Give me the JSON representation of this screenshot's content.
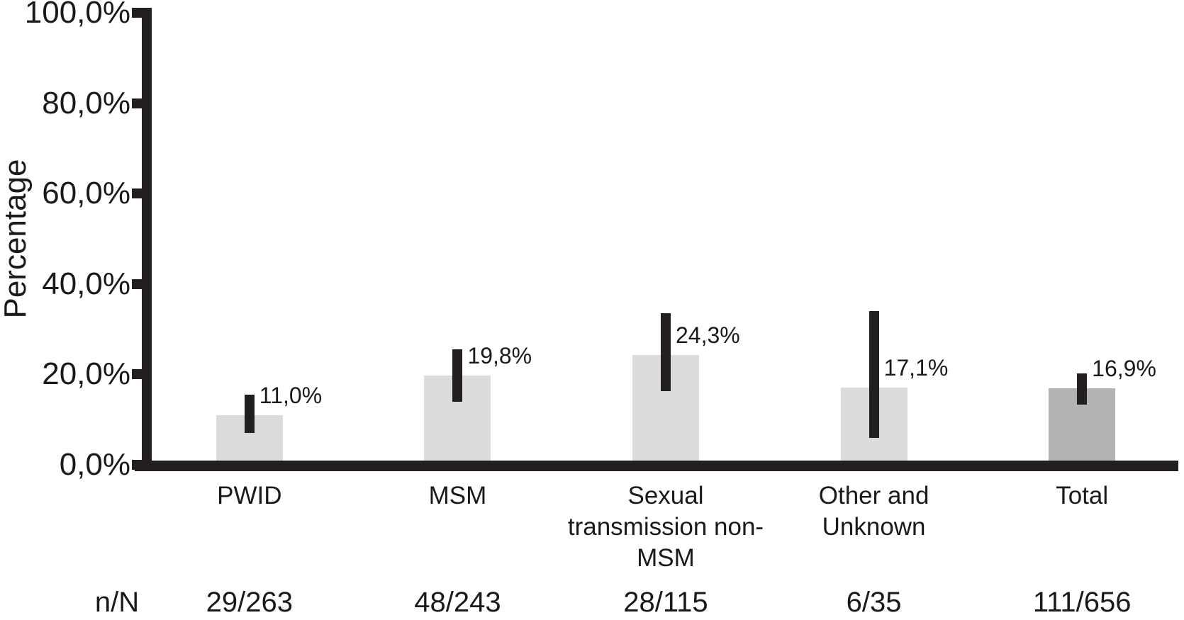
{
  "colors": {
    "background": "#ffffff",
    "text": "#1a1a1a",
    "axis": "#231f20",
    "bar_light": "#dcdcde",
    "bar_dark": "#b3b3b6"
  },
  "chart_data": {
    "type": "bar",
    "title": "",
    "xlabel": "",
    "ylabel": "Percentage",
    "row_header": "n/N",
    "ylim": [
      0,
      100
    ],
    "grid": false,
    "legend": false,
    "decimal_separator": ",",
    "yticks": [
      {
        "label": "100,0%",
        "value": 100
      },
      {
        "label": "80,0%",
        "value": 80
      },
      {
        "label": "60,0%",
        "value": 60
      },
      {
        "label": "40,0%",
        "value": 40
      },
      {
        "label": "20,0%",
        "value": 20
      },
      {
        "label": "0,0%",
        "value": 0
      }
    ],
    "bars": [
      {
        "category": "PWID",
        "value": 11.0,
        "value_label": "11,0%",
        "ci_low": 7.0,
        "ci_high": 15.5,
        "n_over_N": "29/263",
        "color_key": "bar_light"
      },
      {
        "category": "MSM",
        "value": 19.8,
        "value_label": "19,8%",
        "ci_low": 14.0,
        "ci_high": 25.5,
        "n_over_N": "48/243",
        "color_key": "bar_light"
      },
      {
        "category": "Sexual\ntransmission non-\nMSM",
        "value": 24.3,
        "value_label": "24,3%",
        "ci_low": 16.3,
        "ci_high": 33.5,
        "n_over_N": "28/115",
        "color_key": "bar_light"
      },
      {
        "category": "Other and\nUnknown",
        "value": 17.1,
        "value_label": "17,1%",
        "ci_low": 5.9,
        "ci_high": 34.0,
        "n_over_N": "6/35",
        "color_key": "bar_light"
      },
      {
        "category": "Total",
        "value": 16.9,
        "value_label": "16,9%",
        "ci_low": 13.3,
        "ci_high": 20.3,
        "n_over_N": "111/656",
        "color_key": "bar_dark"
      }
    ]
  }
}
